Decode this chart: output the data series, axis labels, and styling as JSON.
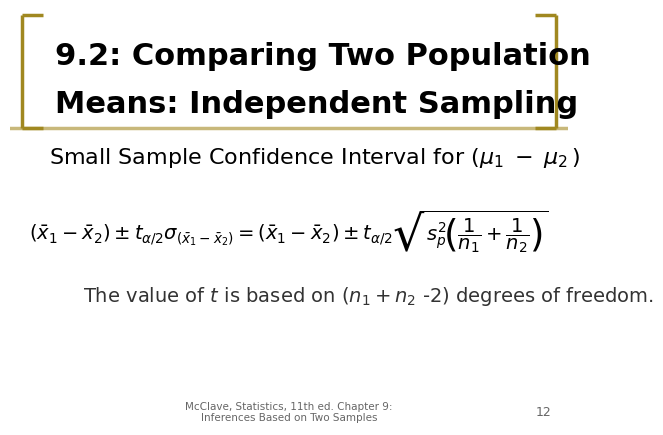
{
  "title_line1": "9.2: Comparing Two Population",
  "title_line2": "Means: Independent Sampling",
  "subtitle_text": "Small Sample Confidence Interval for ",
  "subtitle_math": "(\\mu_1 \\; - \\; \\mu_2 \\, )",
  "formula": "\\left(\\bar{x}_1 - \\bar{x}_2\\right) \\pm t_{\\alpha/2}\\sigma_{(\\bar{x}_1-\\bar{x}_2)} = \\left(\\bar{x}_1 - \\bar{x}_2\\right) \\pm t_{\\alpha/2}\\sqrt{s_p^2\\!\\left(\\frac{1}{n_1}+\\frac{1}{n_2}\\right)}",
  "body_line": "The value of $t$ is based on $(n_1 + n_2$ -2) degrees of freedom.",
  "footer": "McClave, Statistics, 11th ed. Chapter 9:\nInferences Based on Two Samples",
  "page_num": "12",
  "bg_color": "#ffffff",
  "sep_line_color": "#c8b87a",
  "bracket_color": "#a08820",
  "title_text_color": "#000000",
  "subtitle_color": "#000000",
  "formula_color": "#000000",
  "body_color": "#333333",
  "footer_color": "#666666",
  "title_fontsize": 22,
  "subtitle_fontsize": 16,
  "formula_fontsize": 14,
  "body_fontsize": 14,
  "footer_fontsize": 7.5
}
